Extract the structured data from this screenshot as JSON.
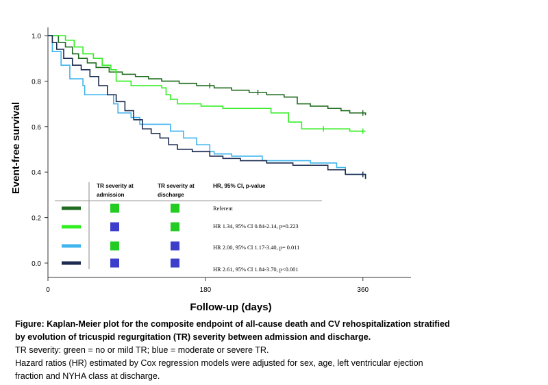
{
  "chart_data": {
    "type": "line",
    "subtype": "kaplan-meier",
    "xlabel": "Follow-up (days)",
    "ylabel": "Event-free survival",
    "xlim": [
      0,
      415
    ],
    "ylim": [
      0.0,
      1.0
    ],
    "x_ticks": [
      "0",
      "180",
      "360"
    ],
    "y_ticks": [
      "0.0",
      "0.2",
      "0.4",
      "0.6",
      "0.8",
      "1.0"
    ],
    "grid": false,
    "legend_placement": "bottom-left inset",
    "series": [
      {
        "color": "#1f6b1f",
        "points": [
          [
            0,
            1.0
          ],
          [
            12,
            0.97
          ],
          [
            20,
            0.95
          ],
          [
            28,
            0.92
          ],
          [
            35,
            0.9
          ],
          [
            45,
            0.88
          ],
          [
            55,
            0.86
          ],
          [
            70,
            0.84
          ],
          [
            85,
            0.83
          ],
          [
            100,
            0.82
          ],
          [
            115,
            0.81
          ],
          [
            130,
            0.8
          ],
          [
            150,
            0.79
          ],
          [
            170,
            0.78
          ],
          [
            190,
            0.77
          ],
          [
            210,
            0.76
          ],
          [
            230,
            0.75
          ],
          [
            250,
            0.74
          ],
          [
            270,
            0.73
          ],
          [
            285,
            0.7
          ],
          [
            300,
            0.69
          ],
          [
            320,
            0.68
          ],
          [
            335,
            0.67
          ],
          [
            345,
            0.66
          ],
          [
            363,
            0.65
          ]
        ],
        "censor_x": [
          185,
          240,
          360
        ]
      },
      {
        "color": "#33ee22",
        "points": [
          [
            0,
            1.0
          ],
          [
            20,
            0.98
          ],
          [
            30,
            0.95
          ],
          [
            40,
            0.92
          ],
          [
            52,
            0.9
          ],
          [
            62,
            0.87
          ],
          [
            72,
            0.85
          ],
          [
            78,
            0.8
          ],
          [
            95,
            0.78
          ],
          [
            130,
            0.77
          ],
          [
            135,
            0.74
          ],
          [
            140,
            0.72
          ],
          [
            148,
            0.7
          ],
          [
            175,
            0.69
          ],
          [
            200,
            0.68
          ],
          [
            255,
            0.66
          ],
          [
            275,
            0.62
          ],
          [
            290,
            0.59
          ],
          [
            345,
            0.58
          ],
          [
            363,
            0.58
          ]
        ],
        "censor_x": [
          315,
          360
        ]
      },
      {
        "color": "#3fb4ee",
        "points": [
          [
            0,
            1.0
          ],
          [
            5,
            0.93
          ],
          [
            15,
            0.87
          ],
          [
            25,
            0.81
          ],
          [
            40,
            0.78
          ],
          [
            42,
            0.74
          ],
          [
            75,
            0.7
          ],
          [
            80,
            0.66
          ],
          [
            95,
            0.64
          ],
          [
            105,
            0.61
          ],
          [
            140,
            0.58
          ],
          [
            155,
            0.55
          ],
          [
            170,
            0.52
          ],
          [
            185,
            0.49
          ],
          [
            190,
            0.48
          ],
          [
            210,
            0.47
          ],
          [
            245,
            0.45
          ],
          [
            300,
            0.44
          ],
          [
            330,
            0.42
          ],
          [
            340,
            0.39
          ],
          [
            363,
            0.38
          ]
        ],
        "censor_x": [
          360
        ]
      },
      {
        "color": "#1b2a4e",
        "points": [
          [
            0,
            1.0
          ],
          [
            5,
            0.97
          ],
          [
            10,
            0.94
          ],
          [
            18,
            0.9
          ],
          [
            28,
            0.87
          ],
          [
            38,
            0.85
          ],
          [
            48,
            0.82
          ],
          [
            58,
            0.78
          ],
          [
            68,
            0.74
          ],
          [
            78,
            0.71
          ],
          [
            88,
            0.67
          ],
          [
            98,
            0.63
          ],
          [
            108,
            0.59
          ],
          [
            118,
            0.57
          ],
          [
            128,
            0.55
          ],
          [
            138,
            0.52
          ],
          [
            148,
            0.5
          ],
          [
            165,
            0.49
          ],
          [
            185,
            0.47
          ],
          [
            200,
            0.46
          ],
          [
            220,
            0.45
          ],
          [
            250,
            0.44
          ],
          [
            280,
            0.43
          ],
          [
            320,
            0.41
          ],
          [
            340,
            0.39
          ],
          [
            363,
            0.37
          ]
        ],
        "censor_x": [
          360
        ]
      }
    ],
    "legend": {
      "headers": [
        "TR severity at admission",
        "TR severity at discharge",
        "HR, 95% CI, p-value"
      ],
      "rows": [
        {
          "line_color": "#1f6b1f",
          "admission_color": "#22cc22",
          "discharge_color": "#22cc22",
          "text": "Referent"
        },
        {
          "line_color": "#33ee22",
          "admission_color": "#3d3dcc",
          "discharge_color": "#22cc22",
          "text": "HR 1.34, 95% CI 0.84-2.14, p=0.223"
        },
        {
          "line_color": "#3fb4ee",
          "admission_color": "#22cc22",
          "discharge_color": "#3d3dcc",
          "text": "HR 2.00, 95% CI 1.17-3.40, p= 0.011"
        },
        {
          "line_color": "#1b2a4e",
          "admission_color": "#3d3dcc",
          "discharge_color": "#3d3dcc",
          "text": "HR 2.61, 95% CI 1.84-3.70, p<0.001"
        }
      ]
    }
  },
  "caption": {
    "title_line1": "Figure: Kaplan-Meier plot for the composite endpoint of all-cause death and CV rehospitalization stratified",
    "title_line2": "by evolution of tricuspid regurgitation (TR) severity between admission and discharge.",
    "line3": "TR severity: green = no or mild TR; blue = moderate or severe TR.",
    "line4": "Hazard ratios (HR) estimated by Cox regression models were adjusted for sex, age, left ventricular ejection",
    "line5": "fraction and NYHA class at discharge."
  }
}
